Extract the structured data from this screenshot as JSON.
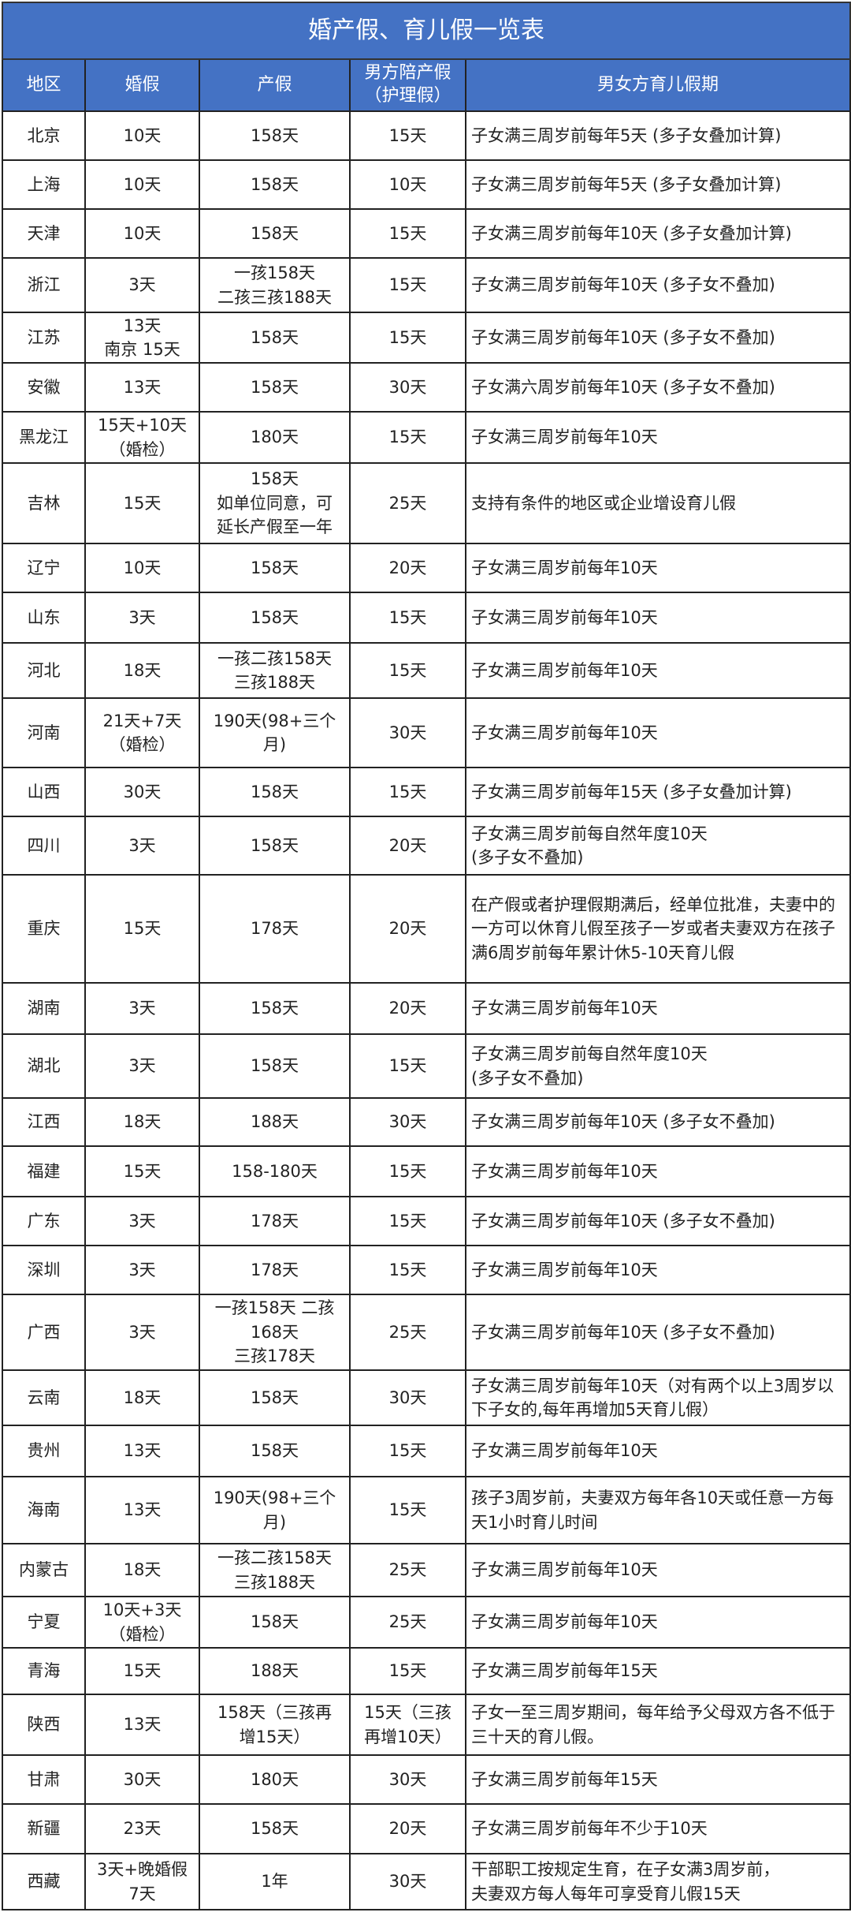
{
  "title": "婚产假、育儿假一览表",
  "headers": [
    "地区",
    "婚假",
    "产假",
    "男方陪产假（护理假）",
    "男女方育儿假期"
  ],
  "header_color": "#4472C4",
  "rows": [
    {
      "region": "北京",
      "marriage": "10天",
      "maternity": "158天",
      "paternity": "15天",
      "childcare": "子女满三周岁前每年5天 (多子女叠加计算)"
    },
    {
      "region": "上海",
      "marriage": "10天",
      "maternity": "158天",
      "paternity": "10天",
      "childcare": "子女满三周岁前每年5天 (多子女叠加计算)"
    },
    {
      "region": "天津",
      "marriage": "10天",
      "maternity": "158天",
      "paternity": "15天",
      "childcare": "子女满三周岁前每年10天 (多子女叠加计算)"
    },
    {
      "region": "浙江",
      "marriage": "3天",
      "maternity": "一孩158天\n二孩三孩188天",
      "paternity": "15天",
      "childcare": "子女满三周岁前每年10天 (多子女不叠加)"
    },
    {
      "region": "江苏",
      "marriage": "13天\n南京 15天",
      "maternity": "158天",
      "paternity": "15天",
      "childcare": "子女满三周岁前每年10天 (多子女不叠加)"
    },
    {
      "region": "安徽",
      "marriage": "13天",
      "maternity": "158天",
      "paternity": "30天",
      "childcare": "子女满六周岁前每年10天 (多子女不叠加)"
    },
    {
      "region": "黑龙江",
      "marriage": "15天+10天\n（婚检）",
      "maternity": "180天",
      "paternity": "15天",
      "childcare": "子女满三周岁前每年10天"
    },
    {
      "region": "吉林",
      "marriage": "15天",
      "maternity": "158天\n如单位同意，可\n延长产假至一年",
      "paternity": "25天",
      "childcare": "支持有条件的地区或企业增设育儿假"
    },
    {
      "region": "辽宁",
      "marriage": "10天",
      "maternity": "158天",
      "paternity": "20天",
      "childcare": "子女满三周岁前每年10天"
    },
    {
      "region": "山东",
      "marriage": "3天",
      "maternity": "158天",
      "paternity": "15天",
      "childcare": "子女满三周岁前每年10天"
    },
    {
      "region": "河北",
      "marriage": "18天",
      "maternity": "一孩二孩158天\n三孩188天",
      "paternity": "15天",
      "childcare": "子女满三周岁前每年10天"
    },
    {
      "region": "河南",
      "marriage": "21天+7天\n（婚检）",
      "maternity": "190天(98+三个\n月)",
      "paternity": "30天",
      "childcare": "子女满三周岁前每年10天"
    },
    {
      "region": "山西",
      "marriage": "30天",
      "maternity": "158天",
      "paternity": "15天",
      "childcare": "子女满三周岁前每年15天 (多子女叠加计算)"
    },
    {
      "region": "四川",
      "marriage": "3天",
      "maternity": "158天",
      "paternity": "20天",
      "childcare": "子女满三周岁前每自然年度10天\n(多子女不叠加)"
    },
    {
      "region": "重庆",
      "marriage": "15天",
      "maternity": "178天",
      "paternity": "20天",
      "childcare": "在产假或者护理假期满后，经单位批准，夫妻中的一方可以休育儿假至孩子一岁或者夫妻双方在孩子满6周岁前每年累计休5-10天育儿假"
    },
    {
      "region": "湖南",
      "marriage": "3天",
      "maternity": "158天",
      "paternity": "20天",
      "childcare": "子女满三周岁前每年10天"
    },
    {
      "region": "湖北",
      "marriage": "3天",
      "maternity": "158天",
      "paternity": "15天",
      "childcare": "子女满三周岁前每自然年度10天\n (多子女不叠加)"
    },
    {
      "region": "江西",
      "marriage": "18天",
      "maternity": "188天",
      "paternity": "30天",
      "childcare": "子女满三周岁前每年10天 (多子女不叠加)"
    },
    {
      "region": "福建",
      "marriage": "15天",
      "maternity": "158-180天",
      "paternity": "15天",
      "childcare": "子女满三周岁前每年10天"
    },
    {
      "region": "广东",
      "marriage": "3天",
      "maternity": "178天",
      "paternity": "15天",
      "childcare": "子女满三周岁前每年10天 (多子女不叠加)"
    },
    {
      "region": "深圳",
      "marriage": "3天",
      "maternity": "178天",
      "paternity": "15天",
      "childcare": "子女满三周岁前每年10天"
    },
    {
      "region": "广西",
      "marriage": "3天",
      "maternity": "一孩158天 二孩\n168天\n三孩178天",
      "paternity": "25天",
      "childcare": "子女满三周岁前每年10天 (多子女不叠加)"
    },
    {
      "region": "云南",
      "marriage": "18天",
      "maternity": "158天",
      "paternity": "30天",
      "childcare": "子女满三周岁前每年10天（对有两个以上3周岁以下子女的,每年再增加5天育儿假）"
    },
    {
      "region": "贵州",
      "marriage": "13天",
      "maternity": "158天",
      "paternity": "15天",
      "childcare": "子女满三周岁前每年10天"
    },
    {
      "region": "海南",
      "marriage": "13天",
      "maternity": "190天(98+三个\n月)",
      "paternity": "15天",
      "childcare": "孩子3周岁前，夫妻双方每年各10天或任意一方每天1小时育儿时间"
    },
    {
      "region": "内蒙古",
      "marriage": "18天",
      "maternity": "一孩二孩158天\n三孩188天",
      "paternity": "25天",
      "childcare": "子女满三周岁前每年10天"
    },
    {
      "region": "宁夏",
      "marriage": "10天+3天\n（婚检）",
      "maternity": "158天",
      "paternity": "25天",
      "childcare": "子女满三周岁前每年10天"
    },
    {
      "region": "青海",
      "marriage": "15天",
      "maternity": "188天",
      "paternity": "15天",
      "childcare": "子女满三周岁前每年15天"
    },
    {
      "region": "陕西",
      "marriage": "13天",
      "maternity": "158天（三孩再\n增15天）",
      "paternity": "15天（三孩\n再增10天）",
      "childcare": "子女一至三周岁期间，每年给予父母双方各不低于三十天的育儿假。"
    },
    {
      "region": "甘肃",
      "marriage": "30天",
      "maternity": "180天",
      "paternity": "30天",
      "childcare": "子女满三周岁前每年15天"
    },
    {
      "region": "新疆",
      "marriage": "23天",
      "maternity": "158天",
      "paternity": "20天",
      "childcare": "子女满三周岁前每年不少于10天"
    },
    {
      "region": "西藏",
      "marriage": "3天+晚婚假\n7天",
      "maternity": "1年",
      "paternity": "30天",
      "childcare": "干部职工按规定生育，在子女满3周岁前，\n夫妻双方每人每年可享受育儿假15天"
    }
  ]
}
